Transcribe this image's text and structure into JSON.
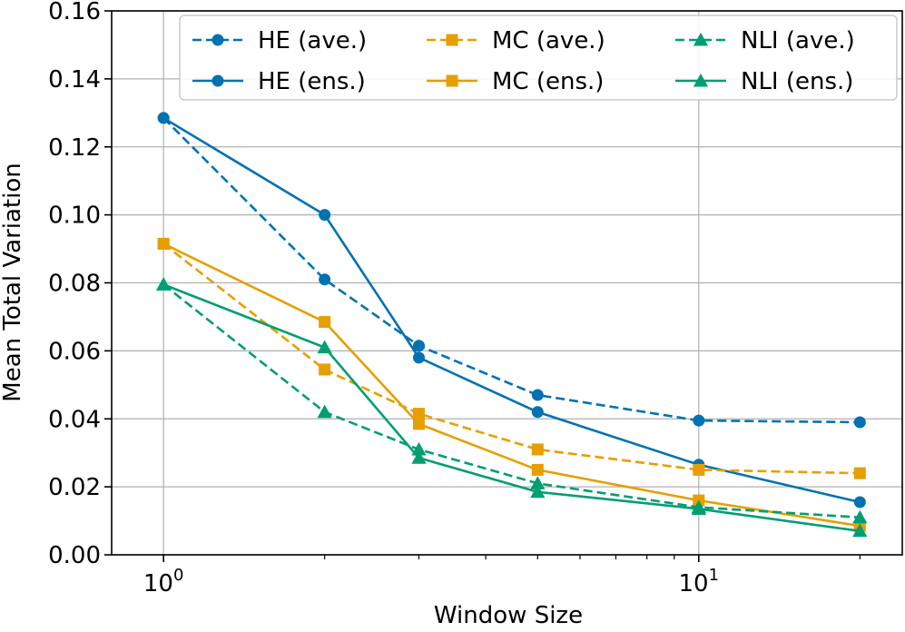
{
  "chart_data": {
    "type": "line",
    "x_scale": "log",
    "x": [
      1,
      2,
      3,
      5,
      10,
      20
    ],
    "xlabel": "Window Size",
    "ylabel": "Mean Total Variation",
    "ylim": [
      0,
      0.16
    ],
    "xlim": [
      0.8,
      24
    ],
    "grid": true,
    "legend_position": "top-right",
    "x_ticks": [
      {
        "value": 1,
        "base": "10",
        "exp": "0"
      },
      {
        "value": 10,
        "base": "10",
        "exp": "1"
      }
    ],
    "y_ticks": [
      {
        "value": 0.0,
        "label": "0.00"
      },
      {
        "value": 0.02,
        "label": "0.02"
      },
      {
        "value": 0.04,
        "label": "0.04"
      },
      {
        "value": 0.06,
        "label": "0.06"
      },
      {
        "value": 0.08,
        "label": "0.08"
      },
      {
        "value": 0.1,
        "label": "0.10"
      },
      {
        "value": 0.12,
        "label": "0.12"
      },
      {
        "value": 0.14,
        "label": "0.14"
      },
      {
        "value": 0.16,
        "label": "0.16"
      }
    ],
    "series": [
      {
        "name": "HE (ave.)",
        "color": "#0072B2",
        "dash": true,
        "marker": "circle",
        "values": [
          0.1285,
          0.081,
          0.0615,
          0.047,
          0.0395,
          0.039
        ]
      },
      {
        "name": "HE (ens.)",
        "color": "#0072B2",
        "dash": false,
        "marker": "circle",
        "values": [
          0.1285,
          0.1,
          0.058,
          0.042,
          0.0265,
          0.0155
        ]
      },
      {
        "name": "MC (ave.)",
        "color": "#E69F00",
        "dash": true,
        "marker": "square",
        "values": [
          0.0915,
          0.0545,
          0.0415,
          0.031,
          0.025,
          0.024
        ]
      },
      {
        "name": "MC (ens.)",
        "color": "#E69F00",
        "dash": false,
        "marker": "square",
        "values": [
          0.0915,
          0.0685,
          0.0385,
          0.025,
          0.016,
          0.0085
        ]
      },
      {
        "name": "NLI (ave.)",
        "color": "#009E73",
        "dash": true,
        "marker": "triangle",
        "values": [
          0.0795,
          0.042,
          0.031,
          0.021,
          0.014,
          0.011
        ]
      },
      {
        "name": "NLI (ens.)",
        "color": "#009E73",
        "dash": false,
        "marker": "triangle",
        "values": [
          0.0795,
          0.061,
          0.0285,
          0.0185,
          0.0135,
          0.007
        ]
      }
    ]
  }
}
